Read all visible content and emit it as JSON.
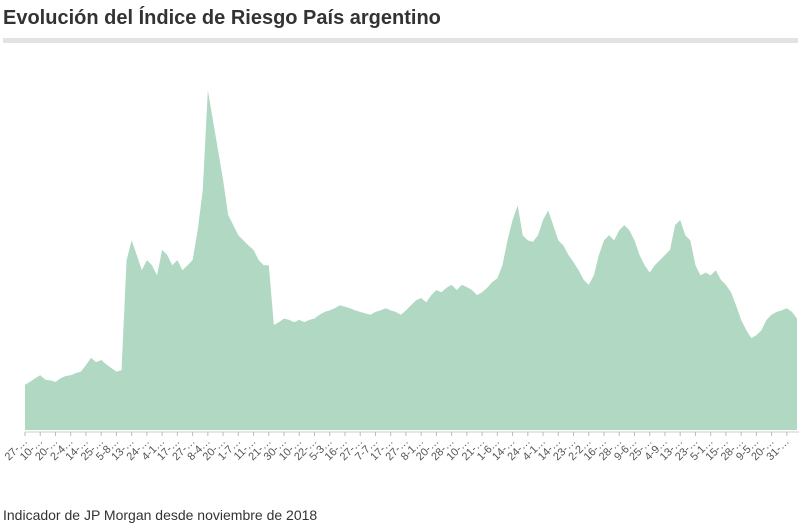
{
  "chart_data": {
    "type": "area",
    "title": "Evolución del Índice de Riesgo País argentino",
    "note": "Indicador de JP Morgan desde noviembre de 2018",
    "color": "#b0d8c3",
    "ylim": [
      0,
      4800
    ],
    "categories": [
      "27-…",
      null,
      null,
      "10-…",
      null,
      null,
      "20-…",
      null,
      null,
      "2-4…",
      null,
      null,
      "14-…",
      null,
      null,
      "25-…",
      null,
      null,
      "5-8…",
      null,
      null,
      "13-…",
      null,
      null,
      "24-…",
      null,
      null,
      "4-1…",
      null,
      null,
      "17-…",
      null,
      null,
      "27-…",
      null,
      null,
      "8-4…",
      null,
      null,
      "20-…",
      null,
      null,
      "1-7…",
      null,
      null,
      "11-…",
      null,
      null,
      "21-…",
      null,
      null,
      "30-…",
      null,
      null,
      "10-…",
      null,
      null,
      "22-…",
      null,
      null,
      "5-3…",
      null,
      null,
      "16-…",
      null,
      null,
      "27-…",
      null,
      null,
      "7-7…",
      null,
      null,
      "17-…",
      null,
      null,
      "27-…",
      null,
      null,
      "8-1…",
      null,
      null,
      "20-…",
      null,
      null,
      "28-…",
      null,
      null,
      "10-…",
      null,
      null,
      "21-…",
      null,
      null,
      "1-6…",
      null,
      null,
      "14-…",
      null,
      null,
      "24-…",
      null,
      null,
      "4-1…",
      null,
      null,
      "14-…",
      null,
      null,
      "23-…",
      null,
      null,
      "2-2…",
      null,
      null,
      "16-…",
      null,
      null,
      "28-…",
      null,
      null,
      "9-6…",
      null,
      null,
      "25-…",
      null,
      null,
      "4-9…",
      null,
      null,
      "13-…",
      null,
      null,
      "23-…",
      null,
      null,
      "5-1…",
      null,
      null,
      "15-…",
      null,
      null,
      "28-…",
      null,
      null,
      "9-5…",
      null,
      null,
      "20-…",
      null,
      null,
      "31-…",
      null,
      null
    ],
    "values": [
      620,
      660,
      710,
      750,
      690,
      680,
      660,
      710,
      740,
      750,
      780,
      800,
      890,
      990,
      930,
      960,
      900,
      850,
      800,
      820,
      2330,
      2600,
      2400,
      2190,
      2330,
      2260,
      2120,
      2470,
      2400,
      2260,
      2330,
      2190,
      2260,
      2330,
      2740,
      3290,
      4660,
      4250,
      3840,
      3430,
      2950,
      2810,
      2670,
      2600,
      2530,
      2470,
      2330,
      2260,
      2260,
      1440,
      1480,
      1530,
      1510,
      1480,
      1510,
      1480,
      1510,
      1530,
      1580,
      1620,
      1640,
      1670,
      1710,
      1690,
      1670,
      1640,
      1620,
      1600,
      1580,
      1620,
      1640,
      1670,
      1640,
      1620,
      1580,
      1640,
      1710,
      1780,
      1810,
      1750,
      1850,
      1920,
      1890,
      1950,
      1990,
      1920,
      1990,
      1960,
      1920,
      1850,
      1890,
      1950,
      2030,
      2080,
      2260,
      2600,
      2880,
      3080,
      2670,
      2600,
      2580,
      2670,
      2880,
      3010,
      2810,
      2600,
      2530,
      2400,
      2300,
      2190,
      2060,
      1990,
      2120,
      2400,
      2600,
      2670,
      2600,
      2740,
      2810,
      2740,
      2600,
      2400,
      2260,
      2160,
      2260,
      2330,
      2400,
      2470,
      2810,
      2880,
      2670,
      2600,
      2260,
      2120,
      2160,
      2120,
      2190,
      2060,
      1990,
      1890,
      1710,
      1510,
      1370,
      1260,
      1300,
      1370,
      1510,
      1580,
      1620,
      1640,
      1670,
      1620,
      1530
    ]
  }
}
